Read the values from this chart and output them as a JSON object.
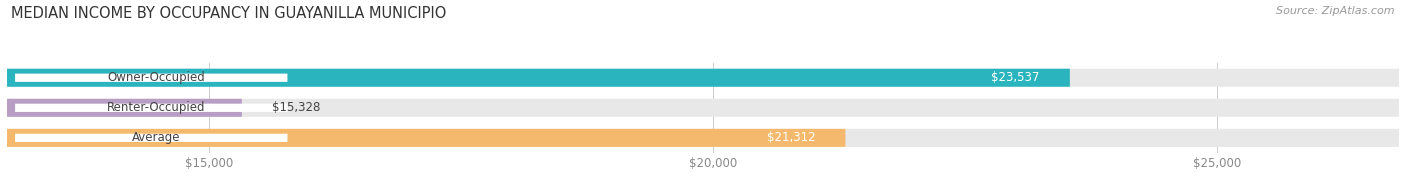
{
  "title": "MEDIAN INCOME BY OCCUPANCY IN GUAYANILLA MUNICIPIO",
  "source": "Source: ZipAtlas.com",
  "categories": [
    "Owner-Occupied",
    "Renter-Occupied",
    "Average"
  ],
  "values": [
    23537,
    15328,
    21312
  ],
  "bar_colors": [
    "#2ab5be",
    "#b89ec4",
    "#f5b96e"
  ],
  "bar_bg_color": "#e8e8e8",
  "value_labels": [
    "$23,537",
    "$15,328",
    "$21,312"
  ],
  "xmin": 13000,
  "xmax": 26800,
  "xticks": [
    15000,
    20000,
    25000
  ],
  "xtick_labels": [
    "$15,000",
    "$20,000",
    "$25,000"
  ],
  "title_fontsize": 10.5,
  "source_fontsize": 8,
  "label_fontsize": 8.5,
  "value_fontsize": 8.5,
  "tick_fontsize": 8.5,
  "bar_height": 0.58,
  "background_color": "#ffffff",
  "label_bg_color": "#ffffff",
  "label_text_color": "#444444",
  "value_text_color": "#ffffff",
  "grid_color": "#cccccc",
  "tick_color": "#888888"
}
